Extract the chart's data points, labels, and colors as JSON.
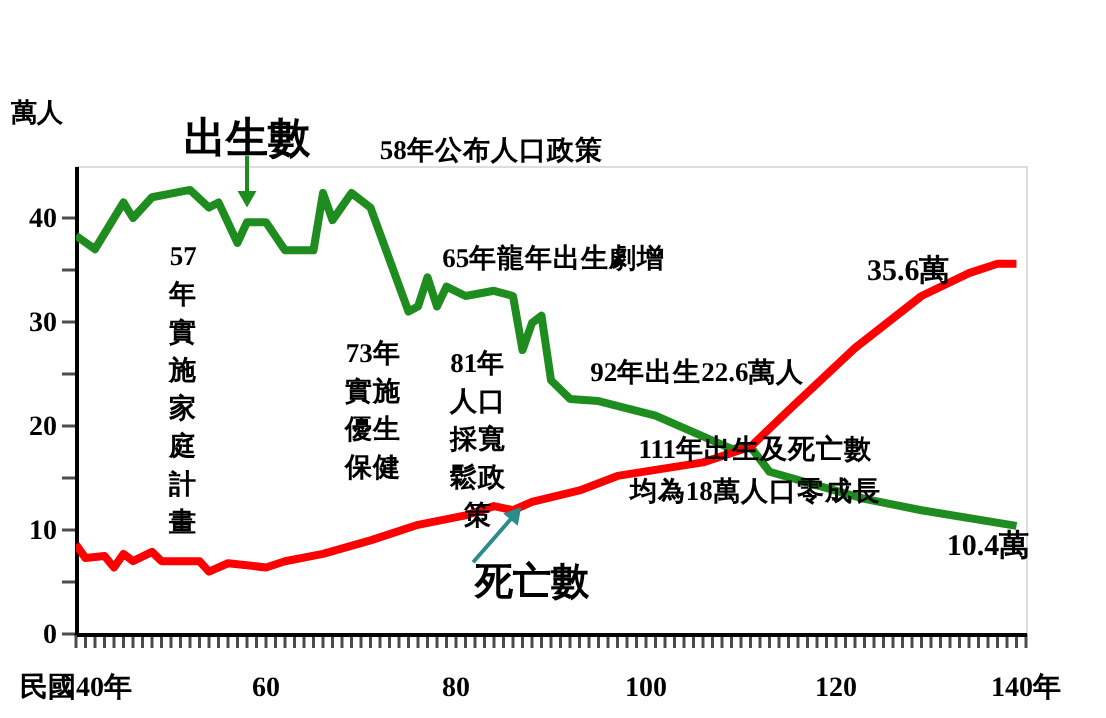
{
  "chart_data": {
    "type": "line",
    "ylabel": "萬人",
    "series": [
      {
        "name": "出生數",
        "color": "#1e8c1e",
        "x": [
          40,
          42,
          45,
          46,
          48,
          52,
          54,
          55,
          57,
          58,
          60,
          62,
          65,
          66,
          67,
          69,
          71,
          73,
          75,
          76,
          77,
          78,
          79,
          81,
          84,
          86,
          87,
          88,
          89,
          90,
          92,
          95,
          101,
          109,
          111,
          113,
          123,
          129,
          139
        ],
        "values": [
          38.3,
          37,
          41.5,
          40,
          42,
          42.7,
          41,
          41.5,
          37.6,
          39.6,
          39.6,
          36.9,
          36.9,
          42.4,
          39.8,
          42.4,
          41,
          36,
          31,
          31.5,
          34.3,
          31.5,
          33.4,
          32.5,
          33,
          32.5,
          27.3,
          29.9,
          30.6,
          24.4,
          22.6,
          22.4,
          21,
          17.8,
          18,
          15.6,
          13,
          11.9,
          10.4
        ]
      },
      {
        "name": "死亡數",
        "color": "#ff0000",
        "x": [
          40,
          41,
          43,
          44,
          45,
          46,
          48,
          49,
          53,
          54,
          56,
          60,
          62,
          66,
          71,
          76,
          81,
          84,
          86,
          88,
          93,
          97,
          106,
          111,
          115,
          122,
          129,
          134,
          137,
          139
        ],
        "values": [
          8.6,
          7.3,
          7.5,
          6.4,
          7.7,
          7,
          7.9,
          7,
          7,
          6,
          6.8,
          6.4,
          7,
          7.7,
          9,
          10.5,
          11.4,
          12.3,
          11.9,
          12.7,
          13.8,
          15.2,
          16.5,
          18,
          21.5,
          27.5,
          32.5,
          34.7,
          35.6,
          35.6
        ]
      }
    ],
    "xlim": [
      40,
      140
    ],
    "xticks": [
      {
        "value": 40,
        "label": "民國40年"
      },
      {
        "value": 41,
        "label": null
      },
      {
        "value": 42,
        "label": null
      },
      {
        "value": 43,
        "label": null
      },
      {
        "value": 44,
        "label": null
      },
      {
        "value": 45,
        "label": null
      },
      {
        "value": 46,
        "label": null
      },
      {
        "value": 47,
        "label": null
      },
      {
        "value": 48,
        "label": null
      },
      {
        "value": 49,
        "label": null
      },
      {
        "value": 50,
        "label": null
      },
      {
        "value": 51,
        "label": null
      },
      {
        "value": 52,
        "label": null
      },
      {
        "value": 53,
        "label": null
      },
      {
        "value": 54,
        "label": null
      },
      {
        "value": 55,
        "label": null
      },
      {
        "value": 56,
        "label": null
      },
      {
        "value": 57,
        "label": null
      },
      {
        "value": 58,
        "label": null
      },
      {
        "value": 59,
        "label": null
      },
      60,
      {
        "value": 61,
        "label": null
      },
      {
        "value": 62,
        "label": null
      },
      {
        "value": 63,
        "label": null
      },
      {
        "value": 64,
        "label": null
      },
      {
        "value": 65,
        "label": null
      },
      {
        "value": 66,
        "label": null
      },
      {
        "value": 67,
        "label": null
      },
      {
        "value": 68,
        "label": null
      },
      {
        "value": 69,
        "label": null
      },
      {
        "value": 70,
        "label": null
      },
      {
        "value": 71,
        "label": null
      },
      {
        "value": 72,
        "label": null
      },
      {
        "value": 73,
        "label": null
      },
      {
        "value": 74,
        "label": null
      },
      {
        "value": 75,
        "label": null
      },
      {
        "value": 76,
        "label": null
      },
      {
        "value": 77,
        "label": null
      },
      {
        "value": 78,
        "label": null
      },
      {
        "value": 79,
        "label": null
      },
      80,
      {
        "value": 81,
        "label": null
      },
      {
        "value": 82,
        "label": null
      },
      {
        "value": 83,
        "label": null
      },
      {
        "value": 84,
        "label": null
      },
      {
        "value": 85,
        "label": null
      },
      {
        "value": 86,
        "label": null
      },
      {
        "value": 87,
        "label": null
      },
      {
        "value": 88,
        "label": null
      },
      {
        "value": 89,
        "label": null
      },
      {
        "value": 90,
        "label": null
      },
      {
        "value": 91,
        "label": null
      },
      {
        "value": 92,
        "label": null
      },
      {
        "value": 93,
        "label": null
      },
      {
        "value": 94,
        "label": null
      },
      {
        "value": 95,
        "label": null
      },
      {
        "value": 96,
        "label": null
      },
      {
        "value": 97,
        "label": null
      },
      {
        "value": 98,
        "label": null
      },
      {
        "value": 99,
        "label": null
      },
      100,
      {
        "value": 101,
        "label": null
      },
      {
        "value": 102,
        "label": null
      },
      {
        "value": 103,
        "label": null
      },
      {
        "value": 104,
        "label": null
      },
      {
        "value": 105,
        "label": null
      },
      {
        "value": 106,
        "label": null
      },
      {
        "value": 107,
        "label": null
      },
      {
        "value": 108,
        "label": null
      },
      {
        "value": 109,
        "label": null
      },
      {
        "value": 110,
        "label": null
      },
      {
        "value": 111,
        "label": null
      },
      {
        "value": 112,
        "label": null
      },
      {
        "value": 113,
        "label": null
      },
      {
        "value": 114,
        "label": null
      },
      {
        "value": 115,
        "label": null
      },
      {
        "value": 116,
        "label": null
      },
      {
        "value": 117,
        "label": null
      },
      {
        "value": 118,
        "label": null
      },
      {
        "value": 119,
        "label": null
      },
      120,
      {
        "value": 121,
        "label": null
      },
      {
        "value": 122,
        "label": null
      },
      {
        "value": 123,
        "label": null
      },
      {
        "value": 124,
        "label": null
      },
      {
        "value": 125,
        "label": null
      },
      {
        "value": 126,
        "label": null
      },
      {
        "value": 127,
        "label": null
      },
      {
        "value": 128,
        "label": null
      },
      {
        "value": 129,
        "label": null
      },
      {
        "value": 130,
        "label": null
      },
      {
        "value": 131,
        "label": null
      },
      {
        "value": 132,
        "label": null
      },
      {
        "value": 133,
        "label": null
      },
      {
        "value": 134,
        "label": null
      },
      {
        "value": 135,
        "label": null
      },
      {
        "value": 136,
        "label": null
      },
      {
        "value": 137,
        "label": null
      },
      {
        "value": 138,
        "label": null
      },
      {
        "value": 139,
        "label": null
      },
      {
        "value": 140,
        "label": "140年"
      }
    ],
    "ylim": [
      0,
      45
    ],
    "yticks": [
      0,
      {
        "value": 5,
        "label": null
      },
      10,
      {
        "value": 15,
        "label": null
      },
      20,
      {
        "value": 25,
        "label": null
      },
      30,
      {
        "value": 35,
        "label": null
      },
      40
    ],
    "annotations": [
      "58年公布人口政策",
      "65年龍年出生劇增",
      "57年實施家庭計畫",
      "73年實施優生保健",
      "81年人口採寬鬆政策",
      "92年出生22.6萬人",
      "111年出生及死亡數均為18萬人口零成長",
      "35.6萬",
      "10.4萬"
    ],
    "grid": false,
    "legend": false,
    "marker": "none",
    "line_style": "solid"
  }
}
